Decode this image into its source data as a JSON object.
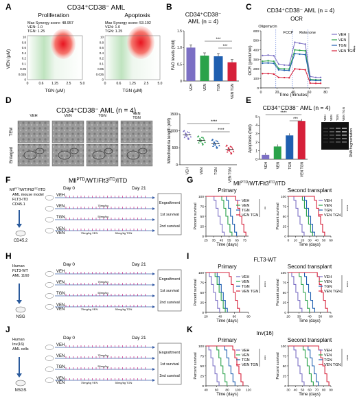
{
  "colors": {
    "veh": "#7b6fc4",
    "ven": "#2aa24a",
    "tgn": "#1f5fb0",
    "combo": "#d6203a",
    "frame_bg": "#f1f1f1",
    "tick_mark": "#c2006e",
    "arrow": "#2a5a9c"
  },
  "panelA": {
    "letter": "A",
    "title": "CD34⁺CD38⁻ AML",
    "left": {
      "subtitle": "Proliferation",
      "synergy": "Max Synergy score: 48.957",
      "ven": "VEN: 1.0",
      "tgn": "TGN: 1.25"
    },
    "right": {
      "subtitle": "Apoptosis",
      "synergy": "Max Synergy score: 53.192",
      "ven": "VEN: 1.0",
      "tgn": "TGN: 1.25"
    },
    "ylabel": "VEN (μM)",
    "xlabel": "TGN (μM)",
    "yticks": [
      "10",
      "0.8",
      "0.6",
      "0.4",
      "0.2",
      "0.1",
      "0.05",
      "0.025",
      "0"
    ],
    "xticks": [
      "0",
      "0.6",
      "1.25",
      "2.5",
      "5.0"
    ]
  },
  "panelB": {
    "letter": "B",
    "title1": "CD34⁺CD38⁻",
    "title2": "AML (n = 4)",
    "ylabel": "FAO levels (fold)",
    "yticks": [
      "0",
      "0.5",
      "1.0",
      "1.5"
    ],
    "sig": [
      "***",
      "***"
    ],
    "chart_data": {
      "type": "bar",
      "categories": [
        "VEH",
        "VEN",
        "TGN",
        "VEN TGN"
      ],
      "values": [
        1.0,
        0.76,
        0.74,
        0.56
      ],
      "ylim": [
        0,
        1.5
      ]
    }
  },
  "panelC": {
    "letter": "C",
    "title": "CD34⁺CD38⁻ AML (n = 4)",
    "subtitle": "OCR",
    "ylabel": "OCR (pmol/min)",
    "xlabel": "Time (minutes)",
    "annotations": [
      "Oligomycin",
      "FCCP",
      "Rotenone"
    ],
    "yticks": [
      "0",
      "100",
      "200",
      "300",
      "400",
      "500",
      "600"
    ],
    "xticks": [
      "0",
      "20",
      "40",
      "60",
      "80"
    ],
    "sig": "***",
    "legend": [
      "VEH",
      "VEN",
      "TGN",
      "VEN TGN"
    ],
    "chart_data": {
      "type": "line",
      "x": [
        2,
        9,
        16,
        22,
        29,
        35,
        42,
        48,
        55,
        61,
        68,
        74
      ],
      "ylim": [
        0,
        600
      ],
      "xlim": [
        0,
        85
      ],
      "series": [
        {
          "name": "VEH",
          "values": [
            340,
            345,
            338,
            250,
            240,
            238,
            480,
            470,
            460,
            120,
            110,
            110
          ]
        },
        {
          "name": "VEN",
          "values": [
            280,
            285,
            280,
            205,
            200,
            198,
            400,
            395,
            390,
            90,
            85,
            85
          ]
        },
        {
          "name": "TGN",
          "values": [
            260,
            262,
            258,
            190,
            185,
            183,
            360,
            355,
            350,
            80,
            78,
            78
          ]
        },
        {
          "name": "VEN TGN",
          "values": [
            150,
            150,
            145,
            110,
            108,
            106,
            200,
            195,
            190,
            50,
            48,
            48
          ]
        }
      ]
    }
  },
  "panelD": {
    "letter": "D",
    "title": "CD34⁺CD38⁻ AML (n = 4)",
    "columns": [
      "VEH",
      "VEN",
      "TGN",
      "VEN TGN"
    ],
    "row_labels": [
      "TEM",
      "Enlarged"
    ],
    "ylabel": "Mitochondria length (nM)",
    "yticks": [
      "0",
      "500",
      "1000",
      "1500"
    ],
    "sig": [
      "****",
      "****"
    ],
    "chart_data": {
      "type": "scatter",
      "categories": [
        "VEH",
        "VEN",
        "TGN",
        "VEN TGN"
      ],
      "means": [
        880,
        720,
        620,
        450
      ],
      "ylim": [
        0,
        1500
      ]
    }
  },
  "panelE": {
    "letter": "E",
    "title": "CD34⁺CD38⁻ AML (n = 4)",
    "ylabel": "Apoptosis (fold)",
    "yticks": [
      "0",
      "1",
      "2",
      "3",
      "4",
      "5"
    ],
    "sig": [
      "****",
      "***"
    ],
    "gel_label": "DNA fragmentation",
    "chart_data": {
      "type": "bar",
      "categories": [
        "VEH",
        "VEN",
        "TGN",
        "VEN TGN"
      ],
      "values": [
        0.5,
        1.5,
        2.8,
        4.5
      ],
      "ylim": [
        0,
        5
      ]
    }
  },
  "panelF": {
    "letter": "F",
    "title": "Mll^PTD/WT/Flt3^ITD/ITD",
    "mouse_label": "Mll^PTD/WT/Flt3^ITD/ITD",
    "model": "AML mouse model",
    "source": "FLT3-ITD",
    "source2": "CD45.1",
    "recipient": "CD45.2",
    "day0": "Day 0",
    "day21": "Day 21",
    "engraftment": "Engraftment",
    "s1": "1st survival",
    "s2": "2nd survival"
  },
  "panelH": {
    "letter": "H",
    "source1": "Human",
    "source2": "FLT3-WT",
    "source3": "AML 1160",
    "recipient": "NSG",
    "day0": "Day 0",
    "day21": "Day 21",
    "engraftment": "Engraftment",
    "s1": "1st survival",
    "s2": "2nd survival"
  },
  "panelJ": {
    "letter": "J",
    "source1": "Human",
    "source2": "Inv(16)",
    "source3": "AML cells",
    "recipient": "NSGS",
    "day0": "Day 0",
    "day21": "Day 21",
    "engraftment": "Engraftment",
    "s1": "1st survival",
    "s2": "2nd survival"
  },
  "treatment_rows": [
    "VEH",
    "VEN",
    "TGN",
    "VEN TGN"
  ],
  "doses": {
    "ven": "75mg/kg",
    "tgn": "50mg/kg",
    "combo": "75mg/kg VEN|50mg/kg TGN"
  },
  "panelG": {
    "letter": "G",
    "title": "Mll^PTD/WT/Flt3^ITD/ITD",
    "left_title": "Primary",
    "right_title": "Second transplant",
    "ylabel": "Percent survival",
    "xlabel": "Time (days)",
    "sig": [
      "**",
      "****"
    ],
    "chart_data": [
      {
        "type": "line",
        "xlim": [
          25,
          80
        ],
        "ylim": [
          0,
          100
        ],
        "xticks": [
          25,
          35,
          45,
          55,
          65,
          75
        ],
        "median_days": [
          42,
          52,
          58,
          70
        ]
      },
      {
        "type": "line",
        "xlim": [
          0,
          60
        ],
        "ylim": [
          0,
          100
        ],
        "xticks": [
          0,
          10,
          20,
          30,
          40,
          50,
          60
        ],
        "median_days": [
          15,
          27,
          30,
          44
        ]
      }
    ]
  },
  "panelI": {
    "letter": "I",
    "title": "FLT3-WT",
    "left_title": "Primary",
    "right_title": "Second transplant",
    "ylabel": "Percent survival",
    "xlabel": "Time (days)",
    "sig": [
      "****",
      "****"
    ],
    "chart_data": [
      {
        "type": "line",
        "xlim": [
          20,
          80
        ],
        "ylim": [
          0,
          100
        ],
        "xticks": [
          20,
          40,
          60,
          80
        ],
        "median_days": [
          32,
          40,
          43,
          60
        ]
      },
      {
        "type": "line",
        "xlim": [
          20,
          60
        ],
        "ylim": [
          0,
          100
        ],
        "xticks": [
          20,
          30,
          40,
          50,
          60
        ],
        "median_days": [
          28,
          35,
          40,
          52
        ]
      }
    ]
  },
  "panelK": {
    "letter": "K",
    "title": "Inv(16)",
    "left_title": "Primary",
    "right_title": "Second transplant",
    "ylabel": "Percent survival",
    "xlabel": "Time (days)",
    "sig": [
      "***",
      "****"
    ],
    "chart_data": [
      {
        "type": "line",
        "xlim": [
          40,
          120
        ],
        "ylim": [
          0,
          100
        ],
        "xticks": [
          40,
          60,
          80,
          100,
          120
        ],
        "median_days": [
          55,
          70,
          85,
          100
        ]
      },
      {
        "type": "line",
        "xlim": [
          30,
          90
        ],
        "ylim": [
          0,
          100
        ],
        "xticks": [
          30,
          40,
          50,
          60,
          70,
          80,
          90
        ],
        "median_days": [
          45,
          58,
          65,
          80
        ]
      }
    ]
  },
  "km_legend": [
    "VEH",
    "VEN",
    "TGN",
    "VEN TGN"
  ]
}
